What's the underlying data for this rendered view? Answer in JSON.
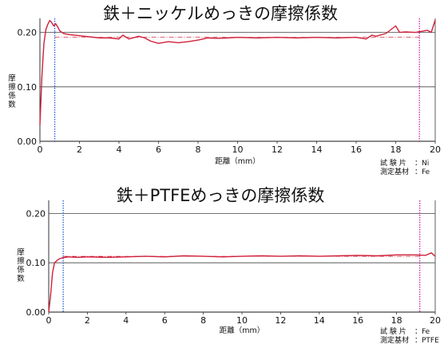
{
  "chart_data": [
    {
      "type": "line",
      "title": "鉄＋ニッケルめっきの摩擦係数",
      "xlabel": "距離（mm）",
      "ylabel": [
        "摩",
        "擦",
        "係",
        "数"
      ],
      "xlim": [
        0,
        20
      ],
      "ylim": [
        0,
        0.22
      ],
      "xticks": [
        "0",
        "2",
        "4",
        "6",
        "8",
        "10",
        "12",
        "14",
        "16",
        "18",
        "20"
      ],
      "yticks": [
        "0.00",
        "0.10",
        "0.20"
      ],
      "info": [
        {
          "label": "試 験 片",
          "value": "Ni"
        },
        {
          "label": "測定基材",
          "value": "Fe"
        }
      ],
      "markers": [
        0.75,
        19.2
      ],
      "average": 0.191,
      "series": [
        {
          "color": "#d0203a",
          "x": [
            0,
            0.1,
            0.2,
            0.3,
            0.4,
            0.5,
            0.6,
            0.7,
            0.8,
            0.9,
            1.0,
            1.2,
            1.5,
            2.0,
            2.5,
            3.0,
            3.5,
            4.0,
            4.2,
            4.5,
            5.0,
            5.3,
            5.6,
            6.0,
            6.5,
            7.0,
            7.5,
            8.0,
            8.5,
            9.0,
            9.5,
            10.0,
            11.0,
            12.0,
            13.0,
            14.0,
            15.0,
            16.0,
            16.5,
            16.8,
            17.0,
            17.5,
            18.0,
            18.2,
            18.5,
            19.0,
            19.3,
            19.6,
            19.8,
            20.0
          ],
          "y": [
            0.03,
            0.12,
            0.18,
            0.205,
            0.215,
            0.222,
            0.218,
            0.212,
            0.216,
            0.21,
            0.203,
            0.198,
            0.196,
            0.194,
            0.192,
            0.19,
            0.19,
            0.188,
            0.195,
            0.188,
            0.193,
            0.19,
            0.184,
            0.18,
            0.183,
            0.181,
            0.183,
            0.186,
            0.19,
            0.189,
            0.19,
            0.191,
            0.19,
            0.191,
            0.19,
            0.191,
            0.19,
            0.191,
            0.188,
            0.195,
            0.193,
            0.198,
            0.212,
            0.2,
            0.201,
            0.2,
            0.202,
            0.204,
            0.2,
            0.223
          ]
        }
      ]
    },
    {
      "type": "line",
      "title": "鉄＋PTFEめっきの摩擦係数",
      "xlabel": "距離（mm）",
      "ylabel": [
        "摩",
        "擦",
        "係",
        "数"
      ],
      "xlim": [
        0,
        20
      ],
      "ylim": [
        0,
        0.22
      ],
      "xticks": [
        "0",
        "2",
        "4",
        "6",
        "8",
        "10",
        "12",
        "14",
        "16",
        "18",
        "20"
      ],
      "yticks": [
        "0.00",
        "0.10",
        "0.20"
      ],
      "info": [
        {
          "label": "試 験 片",
          "value": "Fe"
        },
        {
          "label": "測定基材",
          "value": "PTFE"
        }
      ],
      "markers": [
        0.75,
        19.2
      ],
      "average": 0.113,
      "series": [
        {
          "color": "#d0203a",
          "x": [
            0,
            0.1,
            0.2,
            0.3,
            0.5,
            0.7,
            1.0,
            1.5,
            2.0,
            3.0,
            4.0,
            5.0,
            6.0,
            7.0,
            8.0,
            9.0,
            10.0,
            11.0,
            12.0,
            13.0,
            14.0,
            15.0,
            16.0,
            17.0,
            18.0,
            19.0,
            19.5,
            19.8,
            20.0
          ],
          "y": [
            0.0,
            0.035,
            0.08,
            0.1,
            0.107,
            0.11,
            0.112,
            0.111,
            0.112,
            0.111,
            0.112,
            0.113,
            0.112,
            0.114,
            0.113,
            0.112,
            0.113,
            0.114,
            0.113,
            0.114,
            0.113,
            0.114,
            0.115,
            0.114,
            0.116,
            0.116,
            0.115,
            0.12,
            0.113
          ]
        }
      ]
    }
  ]
}
